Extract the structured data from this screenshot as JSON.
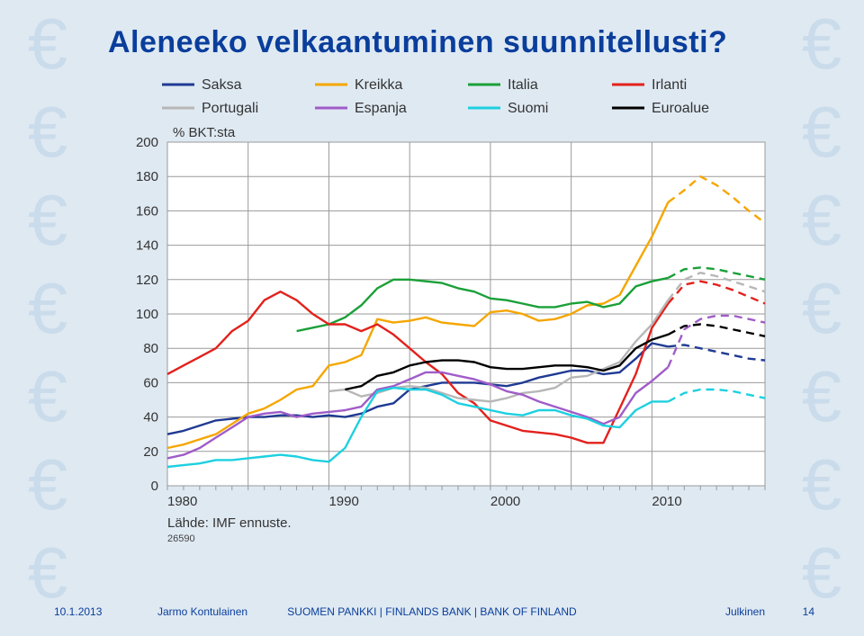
{
  "title": "Aleneeko velkaantuminen suunnitellusti?",
  "footer": {
    "date": "10.1.2013",
    "author": "Jarmo Kontulainen",
    "center": "SUOMEN PANKKI | FINLANDS BANK | BANK OF FINLAND",
    "right": "Julkinen",
    "page": "14"
  },
  "chart": {
    "type": "line",
    "background_color": "#dfe9f2",
    "plot_bg": "#ffffff",
    "grid_color": "#9a9a9a",
    "ylabel": "% BKT:sta",
    "ylim": [
      0,
      200
    ],
    "yticks": [
      0,
      20,
      40,
      60,
      80,
      100,
      120,
      140,
      160,
      180,
      200
    ],
    "x_years": [
      1980,
      2017
    ],
    "x_major_ticks": [
      1980,
      1990,
      2000,
      2010
    ],
    "x_column_bounds": [
      1980,
      1985,
      1990,
      1995,
      2000,
      2005,
      2010,
      2017
    ],
    "source": "Lähde: IMF ennuste.",
    "source_num": "26590",
    "forecast_start_year": 2011,
    "line_width": 2.4,
    "legend": [
      {
        "label": "Saksa",
        "color": "#1f3a93"
      },
      {
        "label": "Kreikka",
        "color": "#f5a600"
      },
      {
        "label": "Italia",
        "color": "#1aa038"
      },
      {
        "label": "Irlanti",
        "color": "#e3211c"
      },
      {
        "label": "Portugali",
        "color": "#b7b7b7"
      },
      {
        "label": "Espanja",
        "color": "#a05cc8"
      },
      {
        "label": "Suomi",
        "color": "#1dd0e0"
      },
      {
        "label": "Euroalue",
        "color": "#000000"
      }
    ],
    "series": {
      "Saksa": {
        "start": 1980,
        "v": [
          30,
          32,
          35,
          38,
          39,
          40,
          40,
          41,
          41,
          40,
          41,
          40,
          42,
          46,
          48,
          56,
          58,
          60,
          60,
          60,
          59,
          58,
          60,
          63,
          65,
          67,
          67,
          65,
          66,
          74,
          83,
          81,
          82,
          80,
          78,
          76,
          74,
          73
        ]
      },
      "Kreikka": {
        "start": 1980,
        "v": [
          22,
          24,
          27,
          30,
          36,
          42,
          45,
          50,
          56,
          58,
          70,
          72,
          76,
          97,
          95,
          96,
          98,
          95,
          94,
          93,
          101,
          102,
          100,
          96,
          97,
          100,
          105,
          106,
          111,
          128,
          145,
          165,
          172,
          180,
          175,
          168,
          160,
          153
        ]
      },
      "Italia": {
        "start": 1980,
        "v": [
          null,
          null,
          null,
          null,
          null,
          null,
          null,
          null,
          90,
          92,
          94,
          98,
          105,
          115,
          120,
          120,
          119,
          118,
          115,
          113,
          109,
          108,
          106,
          104,
          104,
          106,
          107,
          104,
          106,
          116,
          119,
          121,
          126,
          127,
          126,
          124,
          122,
          120
        ]
      },
      "Irlanti": {
        "start": 1980,
        "v": [
          65,
          70,
          75,
          80,
          90,
          96,
          108,
          113,
          108,
          100,
          94,
          94,
          90,
          94,
          88,
          80,
          72,
          65,
          54,
          48,
          38,
          35,
          32,
          31,
          30,
          28,
          25,
          25,
          45,
          65,
          92,
          106,
          117,
          119,
          117,
          114,
          110,
          106
        ]
      },
      "Portugali": {
        "start": 1980,
        "v": [
          null,
          null,
          null,
          null,
          null,
          null,
          null,
          null,
          null,
          null,
          55,
          56,
          52,
          54,
          57,
          58,
          57,
          54,
          51,
          50,
          49,
          51,
          54,
          55,
          57,
          63,
          64,
          68,
          72,
          84,
          94,
          108,
          120,
          124,
          122,
          119,
          116,
          113
        ]
      },
      "Espanja": {
        "start": 1980,
        "v": [
          16,
          18,
          22,
          28,
          34,
          40,
          42,
          43,
          40,
          42,
          43,
          44,
          46,
          56,
          58,
          62,
          66,
          66,
          64,
          62,
          59,
          55,
          53,
          49,
          46,
          43,
          40,
          36,
          40,
          54,
          61,
          69,
          91,
          97,
          99,
          99,
          97,
          95
        ]
      },
      "Suomi": {
        "start": 1980,
        "v": [
          11,
          12,
          13,
          15,
          15,
          16,
          17,
          18,
          17,
          15,
          14,
          22,
          40,
          55,
          57,
          56,
          56,
          53,
          48,
          46,
          44,
          42,
          41,
          44,
          44,
          41,
          39,
          35,
          34,
          44,
          49,
          49,
          54,
          56,
          56,
          55,
          53,
          51
        ]
      },
      "Euroalue": {
        "start": 1980,
        "v": [
          null,
          null,
          null,
          null,
          null,
          null,
          null,
          null,
          null,
          null,
          null,
          56,
          58,
          64,
          66,
          70,
          72,
          73,
          73,
          72,
          69,
          68,
          68,
          69,
          70,
          70,
          69,
          67,
          70,
          80,
          85,
          88,
          93,
          94,
          93,
          91,
          89,
          87
        ]
      }
    }
  }
}
